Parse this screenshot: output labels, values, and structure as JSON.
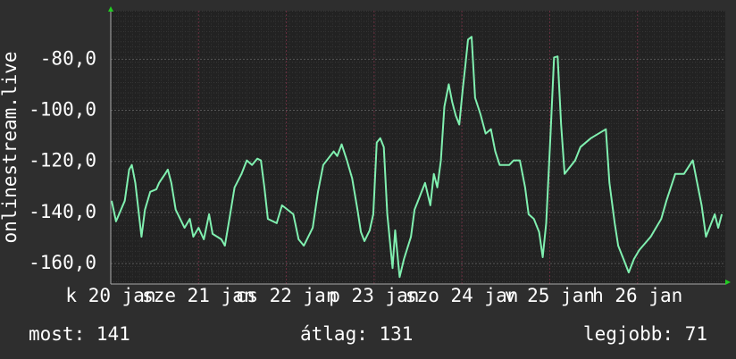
{
  "chart_data": {
    "type": "line",
    "ylabel": "onlinestream.live",
    "color": "#80f0b0",
    "xlim": [
      0,
      7
    ],
    "xticks": [
      {
        "value": 0,
        "label": "k 20 jan"
      },
      {
        "value": 1,
        "label": "sze 21 jan"
      },
      {
        "value": 2,
        "label": "cs 22 jan"
      },
      {
        "value": 3,
        "label": "p 23 jan"
      },
      {
        "value": 4,
        "label": "szo 24 jan"
      },
      {
        "value": 5,
        "label": "v 25 jan"
      },
      {
        "value": 6,
        "label": "h 26 jan"
      }
    ],
    "ylim": [
      -168,
      -61
    ],
    "yticks": [
      {
        "value": -160,
        "label": "-160,0"
      },
      {
        "value": -140,
        "label": "-140,0"
      },
      {
        "value": -120,
        "label": "-120,0"
      },
      {
        "value": -100,
        "label": "-100,0"
      },
      {
        "value": -80,
        "label": "-80,0"
      }
    ],
    "grid": true,
    "x": [
      0.01,
      0.06,
      0.16,
      0.21,
      0.24,
      0.28,
      0.35,
      0.39,
      0.45,
      0.52,
      0.55,
      0.62,
      0.65,
      0.69,
      0.74,
      0.84,
      0.9,
      0.94,
      1.0,
      1.06,
      1.12,
      1.16,
      1.26,
      1.3,
      1.36,
      1.41,
      1.49,
      1.55,
      1.61,
      1.67,
      1.71,
      1.75,
      1.79,
      1.89,
      1.95,
      2.08,
      2.14,
      2.2,
      2.3,
      2.36,
      2.42,
      2.54,
      2.58,
      2.63,
      2.69,
      2.75,
      2.81,
      2.85,
      2.89,
      2.95,
      2.99,
      3.03,
      3.07,
      3.11,
      3.15,
      3.19,
      3.21,
      3.24,
      3.29,
      3.34,
      3.42,
      3.46,
      3.52,
      3.58,
      3.64,
      3.68,
      3.72,
      3.76,
      3.8,
      3.85,
      3.89,
      3.93,
      3.97,
      4.01,
      4.04,
      4.07,
      4.11,
      4.15,
      4.21,
      4.27,
      4.33,
      4.38,
      4.43,
      4.54,
      4.59,
      4.66,
      4.72,
      4.76,
      4.82,
      4.88,
      4.92,
      4.96,
      5.01,
      5.05,
      5.09,
      5.13,
      5.17,
      5.29,
      5.35,
      5.47,
      5.64,
      5.68,
      5.74,
      5.78,
      5.84,
      5.9,
      5.96,
      6.02,
      6.15,
      6.27,
      6.33,
      6.43,
      6.53,
      6.63,
      6.67,
      6.73,
      6.78,
      6.88,
      6.92,
      6.96
    ],
    "values": [
      -135.4,
      -143.5,
      -135.4,
      -123.2,
      -121.4,
      -128.4,
      -149.5,
      -138.9,
      -131.9,
      -130.9,
      -128.4,
      -124.9,
      -123.2,
      -128.4,
      -138.9,
      -146.0,
      -142.5,
      -149.5,
      -146.0,
      -150.5,
      -140.7,
      -148.4,
      -150.5,
      -153.0,
      -140.7,
      -130.2,
      -124.9,
      -119.6,
      -121.4,
      -118.9,
      -119.6,
      -130.2,
      -142.5,
      -144.2,
      -137.2,
      -140.7,
      -150.5,
      -153.0,
      -146.0,
      -131.9,
      -121.4,
      -116.1,
      -117.9,
      -113.3,
      -119.6,
      -126.7,
      -138.9,
      -147.7,
      -151.2,
      -147.0,
      -140.7,
      -112.6,
      -110.9,
      -114.4,
      -140.7,
      -154.7,
      -161.8,
      -147.0,
      -165.3,
      -158.2,
      -149.5,
      -138.9,
      -133.7,
      -128.4,
      -137.2,
      -124.9,
      -130.2,
      -119.6,
      -98.6,
      -89.8,
      -96.8,
      -102.1,
      -105.6,
      -91.6,
      -82.1,
      -72.3,
      -71.2,
      -95.1,
      -101.4,
      -109.1,
      -107.4,
      -116.1,
      -121.4,
      -121.4,
      -119.6,
      -119.6,
      -130.2,
      -140.7,
      -142.5,
      -147.7,
      -157.5,
      -144.2,
      -109.1,
      -79.3,
      -78.9,
      -105.6,
      -124.9,
      -119.6,
      -114.4,
      -110.9,
      -107.4,
      -128.4,
      -144.2,
      -153.0,
      -158.2,
      -163.5,
      -158.2,
      -154.7,
      -149.5,
      -142.5,
      -135.4,
      -124.9,
      -124.9,
      -119.6,
      -126.7,
      -137.2,
      -149.5,
      -140.7,
      -146.0,
      -140.7
    ],
    "stats": [
      "most: 141",
      "átlag: 131",
      "legjobb: 71"
    ]
  }
}
